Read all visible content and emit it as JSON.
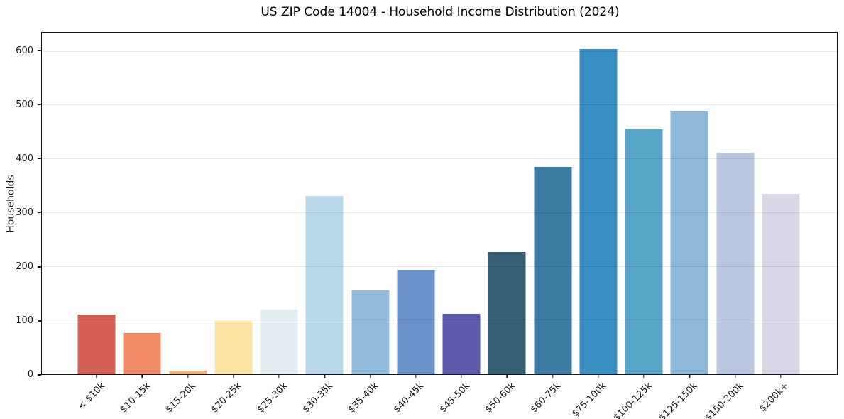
{
  "chart_data": {
    "type": "bar",
    "title": "US ZIP Code 14004 - Household Income Distribution (2024)",
    "xlabel": "",
    "ylabel": "Households",
    "ylim": [
      0,
      635
    ],
    "yticks": [
      0,
      100,
      200,
      300,
      400,
      500,
      600
    ],
    "grid": "horizontal-light-gray",
    "legend": "none",
    "categories": [
      "< $10k",
      "$10-15k",
      "$15-20k",
      "$20-25k",
      "$25-30k",
      "$30-35k",
      "$35-40k",
      "$40-45k",
      "$45-50k",
      "$50-60k",
      "$60-75k",
      "$75-100k",
      "$100-125k",
      "$125-150k",
      "$150-200k",
      "$200k+"
    ],
    "values": [
      111,
      77,
      6,
      99,
      120,
      331,
      156,
      194,
      112,
      227,
      386,
      605,
      456,
      488,
      412,
      335
    ],
    "bar_colors": [
      "#d65f55",
      "#f28d68",
      "#f0b079",
      "#fbe3a2",
      "#e4eef2",
      "#b9d9e9",
      "#92bbdb",
      "#6b92c8",
      "#5c5aaa",
      "#365f73",
      "#3a7ba3",
      "#398ec4",
      "#58a7cb",
      "#8fb8d8",
      "#bac7e0",
      "#d7d7e5"
    ],
    "colors": {
      "background": "#ffffff",
      "spine": "#151515",
      "gridline": "#e8e8e8",
      "text": "#1a1a1a"
    }
  }
}
